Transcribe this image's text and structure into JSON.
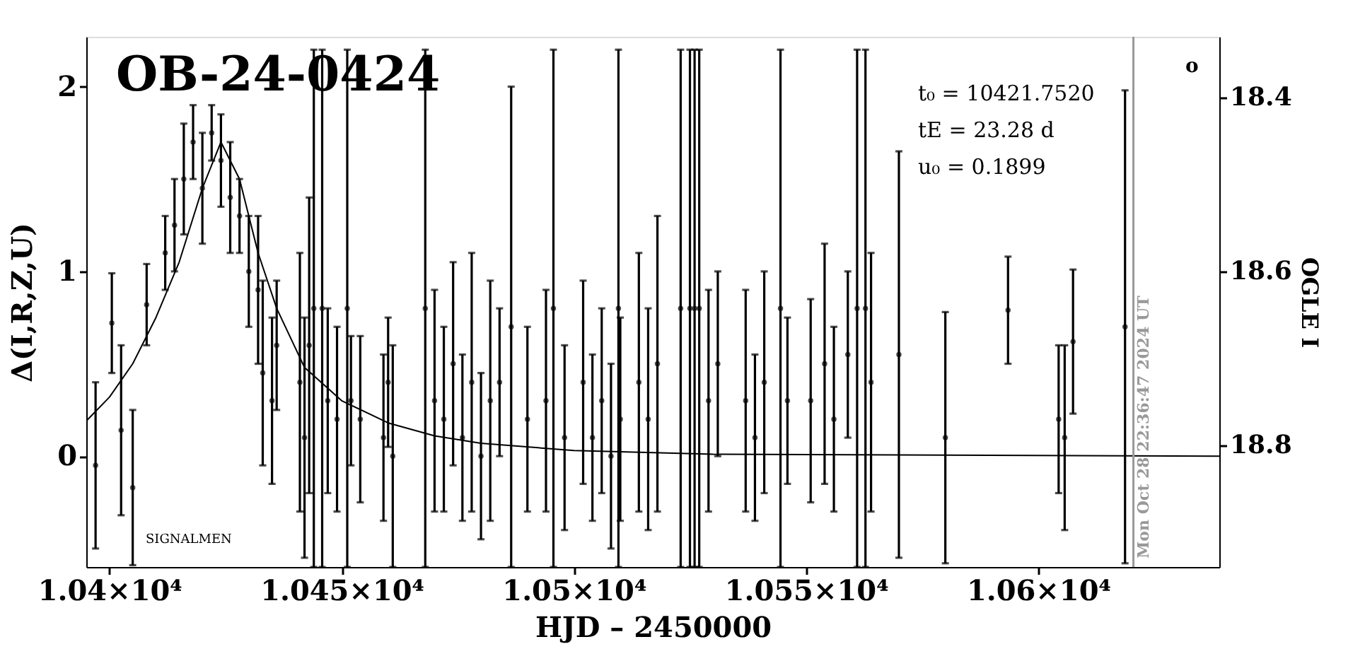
{
  "chart_data": {
    "type": "scatter",
    "title": "OB-24-0424",
    "xlabel": "HJD – 2450000",
    "ylabel": "Δ(I,R,Z,U)",
    "y2label": "OGLE I",
    "xlim": [
      10395,
      10639
    ],
    "ylim": [
      -0.6,
      2.27
    ],
    "y2lim": [
      18.94,
      18.33
    ],
    "xticks": [
      {
        "value": 10400,
        "label": "1.04×10⁴"
      },
      {
        "value": 10450,
        "label": "1.045×10⁴"
      },
      {
        "value": 10500,
        "label": "1.05×10⁴"
      },
      {
        "value": 10550,
        "label": "1.055×10⁴"
      },
      {
        "value": 10600,
        "label": "1.06×10⁴"
      }
    ],
    "yticks": [
      0,
      1,
      2
    ],
    "y2ticks": [
      18.4,
      18.6,
      18.8
    ],
    "grid": false,
    "series": [
      {
        "color": "#000000",
        "marker": "circle",
        "x": [
          10397,
          10400.5,
          10402.5,
          10405,
          10408,
          10412,
          10414,
          10416,
          10418,
          10420,
          10422,
          10424,
          10426,
          10428,
          10430,
          10432,
          10433,
          10435,
          10436,
          10441,
          10442,
          10443,
          10444,
          10445.8,
          10447,
          10449,
          10451.2,
          10452,
          10454,
          10459,
          10460,
          10461,
          10468,
          10470,
          10472,
          10474,
          10476,
          10478,
          10480,
          10482,
          10484,
          10486.5,
          10490,
          10494,
          10495.6,
          10498,
          10502,
          10504,
          10506,
          10508,
          10509.6,
          10510,
          10514,
          10516,
          10518,
          10523,
          10525,
          10526,
          10527,
          10529,
          10531,
          10537,
          10539,
          10541,
          10544.5,
          10546,
          10551,
          10554,
          10556,
          10559,
          10561,
          10562.8,
          10564,
          10570,
          10580,
          10593.5,
          10604.4,
          10605.7,
          10607.5,
          10618.7
        ],
        "values": [
          -0.05,
          0.72,
          0.14,
          -0.17,
          0.82,
          1.1,
          1.25,
          1.5,
          1.7,
          1.45,
          1.75,
          1.6,
          1.4,
          1.3,
          1.0,
          0.9,
          0.45,
          0.3,
          0.6,
          0.4,
          0.1,
          0.6,
          0.8,
          0.8,
          0.3,
          0.2,
          0.8,
          0.3,
          0.2,
          0.1,
          0.4,
          0.0,
          0.8,
          0.3,
          0.2,
          0.5,
          0.1,
          0.4,
          0.0,
          0.3,
          0.4,
          0.7,
          0.2,
          0.3,
          0.8,
          0.1,
          0.4,
          0.1,
          0.3,
          0.0,
          0.8,
          0.2,
          0.4,
          0.2,
          0.5,
          0.8,
          0.8,
          0.8,
          0.8,
          0.3,
          0.5,
          0.3,
          0.1,
          0.4,
          0.8,
          0.3,
          0.3,
          0.5,
          0.2,
          0.55,
          0.8,
          0.8,
          0.4,
          0.55,
          0.1,
          0.79,
          0.2,
          0.1,
          0.62,
          0.7
        ],
        "errors": [
          0.45,
          0.27,
          0.46,
          0.42,
          0.22,
          0.2,
          0.25,
          0.3,
          0.2,
          0.3,
          0.15,
          0.25,
          0.3,
          0.2,
          0.3,
          0.4,
          0.5,
          0.45,
          0.35,
          0.7,
          0.65,
          0.8,
          1.4,
          1.4,
          0.5,
          0.5,
          1.4,
          0.35,
          0.45,
          0.45,
          0.35,
          0.6,
          1.4,
          0.6,
          0.5,
          0.55,
          0.45,
          0.7,
          0.45,
          0.65,
          0.4,
          1.3,
          0.5,
          0.6,
          1.4,
          0.5,
          0.55,
          0.45,
          0.5,
          0.5,
          1.4,
          0.55,
          0.7,
          0.6,
          0.8,
          1.4,
          1.4,
          1.4,
          1.4,
          0.6,
          0.5,
          0.6,
          0.45,
          0.6,
          1.4,
          0.45,
          0.55,
          0.65,
          0.5,
          0.45,
          1.4,
          1.4,
          0.7,
          1.1,
          0.68,
          0.29,
          0.4,
          0.5,
          0.39,
          1.28
        ]
      },
      {
        "type": "line",
        "color": "#000000",
        "line_style": "solid",
        "x": [
          10395,
          10400,
          10405,
          10410,
          10415,
          10420,
          10424,
          10428,
          10432,
          10436,
          10442,
          10450,
          10460,
          10470,
          10480,
          10500,
          10530,
          10639
        ],
        "values": [
          0.19,
          0.32,
          0.5,
          0.75,
          1.05,
          1.45,
          1.7,
          1.5,
          1.1,
          0.8,
          0.48,
          0.3,
          0.18,
          0.11,
          0.07,
          0.03,
          0.01,
          0.0
        ]
      }
    ],
    "ref_lines": [
      {
        "axis": "x",
        "value": 10620.5,
        "color": "#999999"
      }
    ],
    "annotations": [
      "t₀ = 10421.7520",
      "tE = 23.28 d",
      "u₀ = 0.1899",
      "SIGNALMEN",
      "o",
      "Mon Oct 28 22:36:47 2024 UT"
    ]
  }
}
